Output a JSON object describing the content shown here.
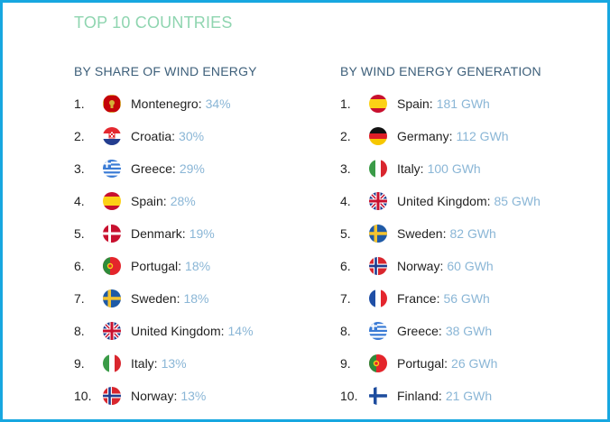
{
  "title": "TOP 10 COUNTRIES",
  "share": {
    "heading": "BY SHARE OF WIND ENERGY",
    "items": [
      {
        "rank": "1.",
        "country": "Montenegro:",
        "value": "34%",
        "flag": "montenegro-flag"
      },
      {
        "rank": "2.",
        "country": "Croatia:",
        "value": "30%",
        "flag": "croatia-flag"
      },
      {
        "rank": "3.",
        "country": "Greece:",
        "value": "29%",
        "flag": "greece-flag"
      },
      {
        "rank": "4.",
        "country": "Spain:",
        "value": "28%",
        "flag": "spain-flag"
      },
      {
        "rank": "5.",
        "country": "Denmark:",
        "value": "19%",
        "flag": "denmark-flag"
      },
      {
        "rank": "6.",
        "country": "Portugal:",
        "value": "18%",
        "flag": "portugal-flag"
      },
      {
        "rank": "7.",
        "country": "Sweden:",
        "value": "18%",
        "flag": "sweden-flag"
      },
      {
        "rank": "8.",
        "country": "United Kingdom:",
        "value": "14%",
        "flag": "uk-flag"
      },
      {
        "rank": "9.",
        "country": "Italy:",
        "value": "13%",
        "flag": "italy-flag"
      },
      {
        "rank": "10.",
        "country": "Norway:",
        "value": "13%",
        "flag": "norway-flag"
      }
    ]
  },
  "generation": {
    "heading": "BY WIND ENERGY GENERATION",
    "items": [
      {
        "rank": "1.",
        "country": "Spain:",
        "value": "181 GWh",
        "flag": "spain-flag"
      },
      {
        "rank": "2.",
        "country": "Germany:",
        "value": "112 GWh",
        "flag": "germany-flag"
      },
      {
        "rank": "3.",
        "country": "Italy:",
        "value": "100 GWh",
        "flag": "italy-flag"
      },
      {
        "rank": "4.",
        "country": "United Kingdom:",
        "value": "85 GWh",
        "flag": "uk-flag"
      },
      {
        "rank": "5.",
        "country": "Sweden:",
        "value": "82 GWh",
        "flag": "sweden-flag"
      },
      {
        "rank": "6.",
        "country": "Norway:",
        "value": "60 GWh",
        "flag": "norway-flag"
      },
      {
        "rank": "7.",
        "country": "France:",
        "value": "56 GWh",
        "flag": "france-flag"
      },
      {
        "rank": "8.",
        "country": "Greece:",
        "value": "38 GWh",
        "flag": "greece-flag"
      },
      {
        "rank": "9.",
        "country": "Portugal:",
        "value": "26 GWh",
        "flag": "portugal-flag"
      },
      {
        "rank": "10.",
        "country": "Finland:",
        "value": "21 GWh",
        "flag": "finland-flag"
      }
    ]
  },
  "colors": {
    "border": "#17a7e0",
    "title": "#8fd5b0",
    "heading": "#3d5f7a",
    "value": "#8ab6d6"
  }
}
